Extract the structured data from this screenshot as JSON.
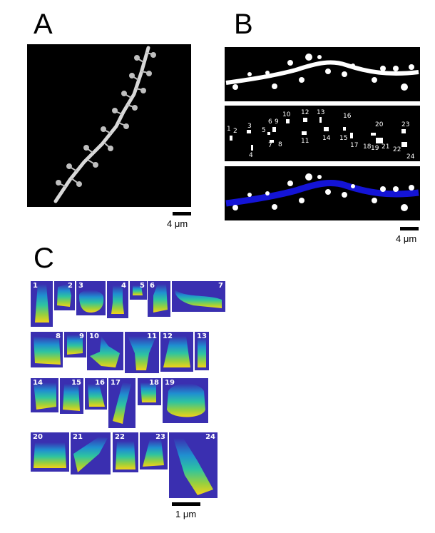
{
  "panels": {
    "a": {
      "letter": "A",
      "scale_label": "4 μm"
    },
    "b": {
      "letter": "B",
      "scale_label": "4 μm",
      "spine_numbers": [
        "1",
        "2",
        "3",
        "4",
        "5",
        "6",
        "7",
        "8",
        "9",
        "10",
        "11",
        "12",
        "13",
        "14",
        "15",
        "16",
        "17",
        "18",
        "19",
        "20",
        "21",
        "22",
        "23",
        "24"
      ]
    },
    "c": {
      "letter": "C",
      "scale_label": "1 μm",
      "tile_numbers": [
        "1",
        "2",
        "3",
        "4",
        "5",
        "6",
        "7",
        "8",
        "9",
        "10",
        "11",
        "12",
        "13",
        "14",
        "15",
        "16",
        "17",
        "18",
        "19",
        "20",
        "21",
        "22",
        "23",
        "24"
      ]
    }
  },
  "colors": {
    "background": "#000000",
    "dendrite": "#ffffff",
    "shaft_overlay": "#1010d0",
    "tile_bg": "#3a2fb0",
    "gradient": [
      "#3a2fb0",
      "#1f8fd0",
      "#2ec4a0",
      "#9ad03c",
      "#f2d21a"
    ]
  }
}
